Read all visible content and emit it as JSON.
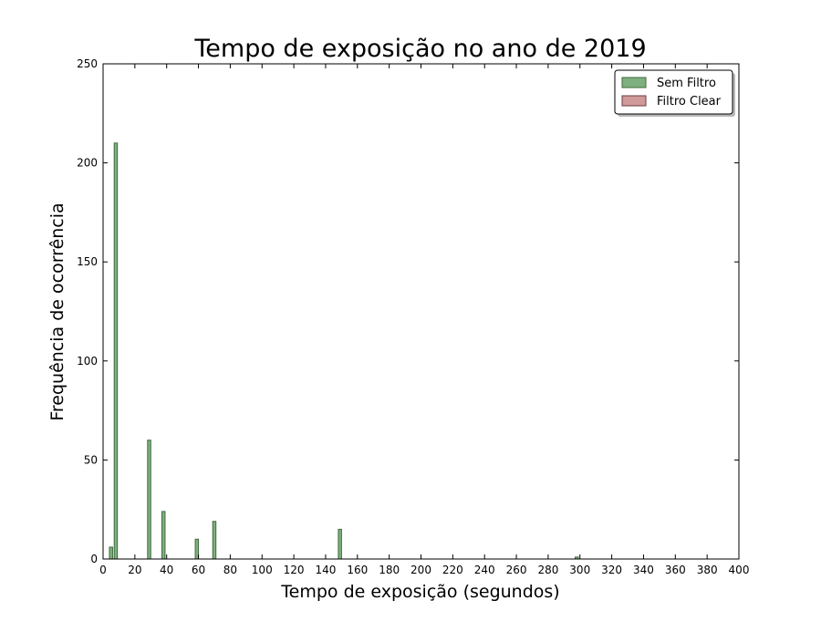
{
  "chart_data": {
    "type": "bar",
    "title": "Tempo de exposição no ano de 2019",
    "xlabel": "Tempo de exposição (segundos)",
    "ylabel": "Frequência de ocorrência",
    "xlim": [
      0,
      400
    ],
    "ylim": [
      0,
      250
    ],
    "xticks": [
      0,
      20,
      40,
      60,
      80,
      100,
      120,
      140,
      160,
      180,
      200,
      220,
      240,
      260,
      280,
      300,
      320,
      340,
      360,
      380,
      400
    ],
    "yticks": [
      0,
      50,
      100,
      150,
      200,
      250
    ],
    "bin_width": 2,
    "grid": false,
    "legend_position": "top-right",
    "series": [
      {
        "name": "Sem Filtro",
        "color": "#7fb07f",
        "edge_color": "#3f6a3f",
        "bars": [
          {
            "x": 5,
            "value": 6
          },
          {
            "x": 8,
            "value": 210
          },
          {
            "x": 29,
            "value": 60
          },
          {
            "x": 38,
            "value": 24
          },
          {
            "x": 59,
            "value": 10
          },
          {
            "x": 70,
            "value": 19
          },
          {
            "x": 149,
            "value": 15
          },
          {
            "x": 298,
            "value": 1
          }
        ]
      },
      {
        "name": "Filtro Clear",
        "color": "#d09a9a",
        "edge_color": "#6a3f3f",
        "bars": []
      }
    ]
  }
}
